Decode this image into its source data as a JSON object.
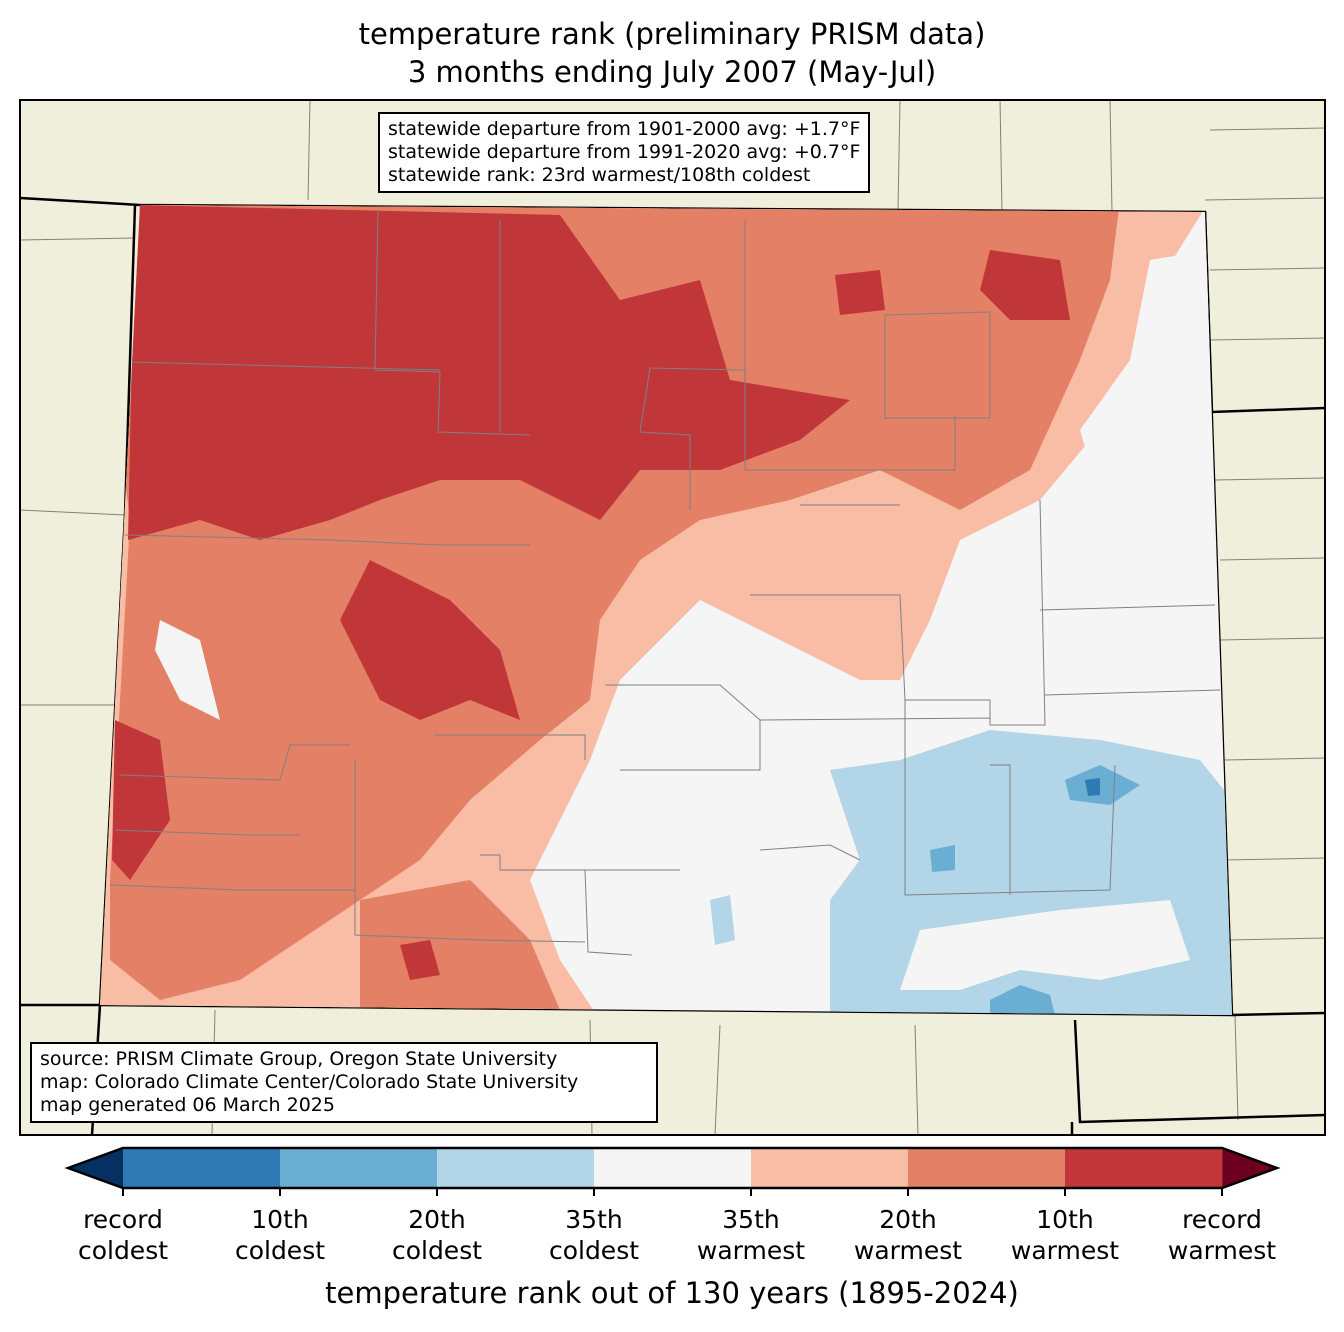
{
  "title": {
    "line1": "temperature rank (preliminary PRISM data)",
    "line2": "3 months ending July 2007 (May-Jul)"
  },
  "stats_box": {
    "line1": "statewide departure from 1901-2000 avg: +1.7°F",
    "line2": "statewide departure from 1991-2020 avg: +0.7°F",
    "line3": "statewide rank: 23rd warmest/108th coldest"
  },
  "source_box": {
    "line1": "source: PRISM Climate Group, Oregon State University",
    "line2": "map: Colorado Climate Center/Colorado State University",
    "line3": "map generated 06 March 2025"
  },
  "colorbar": {
    "label": "temperature rank out of 130 years (1895-2024)",
    "colors": {
      "below_min": "#053061",
      "bins": [
        "#2f79b5",
        "#6aaed3",
        "#b3d5e8",
        "#f5f5f5",
        "#f9bda5",
        "#e48066",
        "#c13639"
      ],
      "above_max": "#6d0020"
    },
    "ticks": [
      {
        "l1": "record",
        "l2": "coldest"
      },
      {
        "l1": "10th",
        "l2": "coldest"
      },
      {
        "l1": "20th",
        "l2": "coldest"
      },
      {
        "l1": "35th",
        "l2": "coldest"
      },
      {
        "l1": "35th",
        "l2": "warmest"
      },
      {
        "l1": "20th",
        "l2": "warmest"
      },
      {
        "l1": "10th",
        "l2": "warmest"
      },
      {
        "l1": "record",
        "l2": "warmest"
      }
    ]
  },
  "colors": {
    "land": "#efefdc",
    "county_lines": "#808080"
  }
}
